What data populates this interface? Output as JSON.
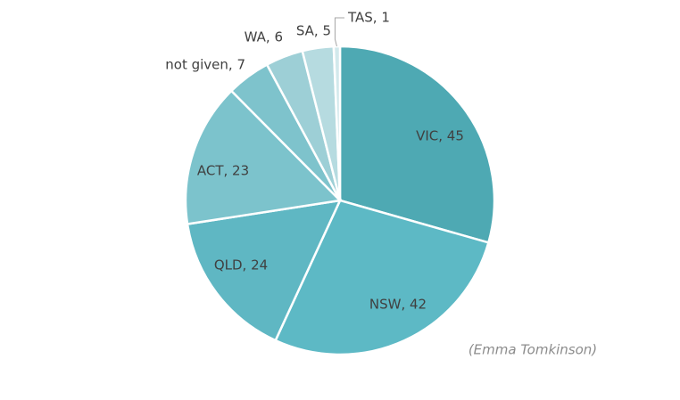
{
  "chart_data": {
    "type": "pie",
    "categories": [
      "VIC",
      "NSW",
      "QLD",
      "ACT",
      "not given",
      "WA",
      "SA",
      "TAS"
    ],
    "values": [
      45,
      42,
      24,
      23,
      7,
      6,
      5,
      1
    ],
    "value_labels": [
      "VIC, 45",
      "NSW, 42",
      "QLD, 24",
      "ACT, 23",
      "not given, 7",
      "WA, 6",
      "SA, 5",
      "TAS, 1"
    ],
    "colors": [
      "#4ea9b3",
      "#5db9c5",
      "#5fb7c3",
      "#7cc3cc",
      "#7ec3cc",
      "#9dcfd6",
      "#b6dbe0",
      "#d2e9ec"
    ],
    "source": "(Emma Tomkinson)"
  }
}
